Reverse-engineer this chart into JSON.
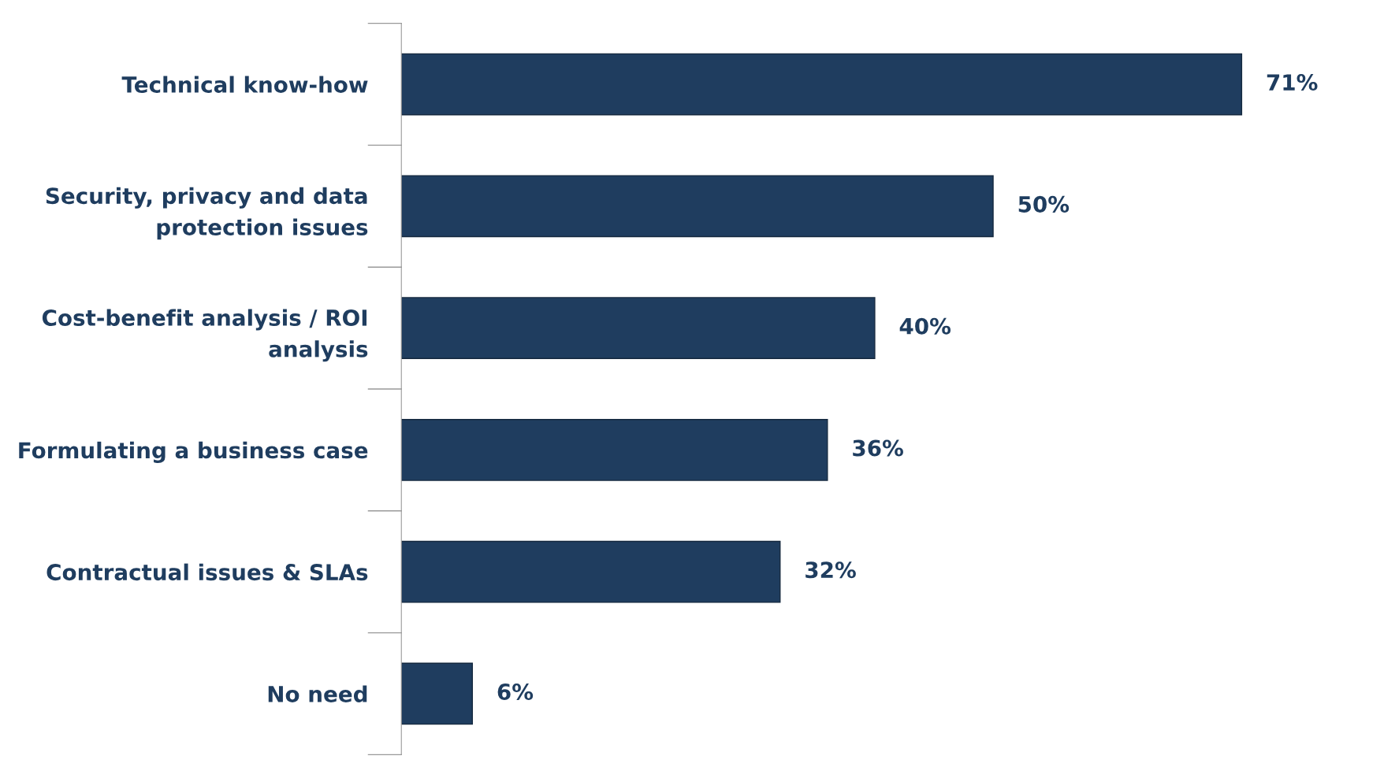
{
  "chart_data": {
    "type": "bar",
    "orientation": "horizontal",
    "categories": [
      "Technical know-how",
      "Security, privacy and data\nprotection issues",
      "Cost-benefit analysis / ROI\nanalysis",
      "Formulating a business case",
      "Contractual issues & SLAs",
      "No need"
    ],
    "values": [
      71,
      50,
      40,
      36,
      32,
      6
    ],
    "value_labels": [
      "71%",
      "50%",
      "40%",
      "36%",
      "32%",
      "6%"
    ],
    "color": "#1f3d5f",
    "grid": false,
    "legend": false
  }
}
